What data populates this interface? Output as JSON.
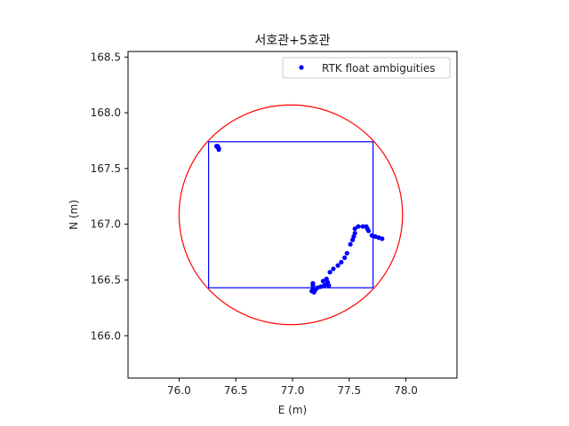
{
  "chart_data": {
    "type": "scatter",
    "title": "서호관+5호관",
    "xlabel": "E (m)",
    "ylabel": "N (m)",
    "xlim": [
      75.55,
      78.45
    ],
    "ylim": [
      165.62,
      168.55
    ],
    "xticks": [
      76.0,
      76.5,
      77.0,
      77.5,
      78.0
    ],
    "yticks": [
      166.0,
      166.5,
      167.0,
      167.5,
      168.0,
      168.5
    ],
    "xtick_labels": [
      "76.0",
      "76.5",
      "77.0",
      "77.5",
      "78.0"
    ],
    "ytick_labels": [
      "166.0",
      "166.5",
      "167.0",
      "167.5",
      "168.0",
      "168.5"
    ],
    "grid": false,
    "legend_position": "top-right",
    "series": [
      {
        "name": "RTK float ambiguities",
        "color": "#0000ff",
        "marker": "dot",
        "points": [
          [
            76.33,
            167.7
          ],
          [
            76.34,
            167.69
          ],
          [
            76.35,
            167.68
          ],
          [
            76.35,
            167.67
          ],
          [
            76.34,
            167.7
          ],
          [
            77.17,
            166.4
          ],
          [
            77.18,
            166.42
          ],
          [
            77.19,
            166.39
          ],
          [
            77.18,
            166.45
          ],
          [
            77.18,
            166.47
          ],
          [
            77.2,
            166.41
          ],
          [
            77.22,
            166.43
          ],
          [
            77.25,
            166.44
          ],
          [
            77.27,
            166.49
          ],
          [
            77.28,
            166.45
          ],
          [
            77.3,
            166.46
          ],
          [
            77.3,
            166.51
          ],
          [
            77.31,
            166.48
          ],
          [
            77.32,
            166.45
          ],
          [
            77.33,
            166.57
          ],
          [
            77.36,
            166.6
          ],
          [
            77.4,
            166.63
          ],
          [
            77.43,
            166.66
          ],
          [
            77.46,
            166.7
          ],
          [
            77.48,
            166.74
          ],
          [
            77.51,
            166.82
          ],
          [
            77.53,
            166.86
          ],
          [
            77.54,
            166.89
          ],
          [
            77.55,
            166.92
          ],
          [
            77.55,
            166.96
          ],
          [
            77.58,
            166.98
          ],
          [
            77.62,
            166.98
          ],
          [
            77.65,
            166.98
          ],
          [
            77.66,
            166.96
          ],
          [
            77.67,
            166.94
          ],
          [
            77.7,
            166.9
          ],
          [
            77.73,
            166.89
          ],
          [
            77.76,
            166.88
          ],
          [
            77.79,
            166.87
          ]
        ]
      }
    ],
    "rectangle": {
      "x": [
        76.26,
        77.71
      ],
      "y": [
        166.43,
        167.74
      ],
      "color": "#0000ff"
    },
    "circle": {
      "center": [
        76.985,
        167.085
      ],
      "radius": 0.985,
      "color": "#ff0000"
    }
  }
}
